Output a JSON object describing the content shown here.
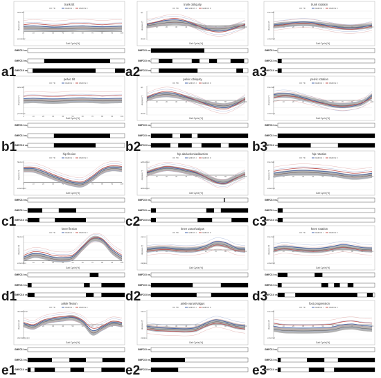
{
  "legend": [
    "TD",
    "GMFCS I",
    "GMFCS II"
  ],
  "series_colors": {
    "td_band": "#9a9a9a",
    "gmfcs1": "#3f5fa8",
    "gmfcs2": "#c0504d",
    "sd": "#a9a9a9",
    "bar": "#000000"
  },
  "x_axis": {
    "label": "Gait Cycle [%]",
    "ticks": [
      "0",
      "10",
      "20",
      "30",
      "40",
      "50",
      "60",
      "70",
      "80",
      "90",
      "100"
    ]
  },
  "y_axis_label": "degrees [°]",
  "row_labels": {
    "r1": "GMFCS I vs. II",
    "r2": "GMFCS I vs. TD",
    "r3": "GMFCS II vs. TD"
  },
  "chart_data": [
    {
      "id": "a1",
      "type": "line",
      "title": "trunk tilt",
      "upper": "anterior",
      "lower": "posterior",
      "ylim": [
        -5,
        12
      ],
      "td": [
        2,
        2,
        1.8,
        1.6,
        1.6,
        1.8,
        2,
        1.8,
        1.6,
        1.8,
        2
      ],
      "g1": [
        3,
        3.4,
        3,
        2.6,
        2.8,
        3.2,
        3.4,
        3,
        2.8,
        3,
        3.2
      ],
      "g2": [
        4,
        4.6,
        4.2,
        3.8,
        4,
        4.6,
        4.8,
        4.4,
        4,
        4.4,
        4.6
      ],
      "bars": {
        "r1": [],
        "r2": [
          [
            17,
            85
          ]
        ],
        "r3": [
          [
            5,
            70
          ],
          [
            90,
            100
          ]
        ]
      }
    },
    {
      "id": "a2",
      "type": "line",
      "title": "trunk obliquity",
      "upper": "up",
      "lower": "down",
      "ylim": [
        -6,
        6
      ],
      "td": [
        0,
        0.6,
        1.2,
        1.4,
        1,
        0,
        -1,
        -1.4,
        -1.2,
        -0.4,
        0
      ],
      "g1": [
        0.4,
        1.4,
        2.2,
        2.4,
        1.6,
        0.2,
        -1.2,
        -2.2,
        -2,
        -0.8,
        0.4
      ],
      "g2": [
        0.6,
        1.6,
        2.6,
        3,
        2,
        0.4,
        -1.6,
        -2.6,
        -2.4,
        -1,
        0.6
      ],
      "bars": {
        "r1": [
          [
            0,
            55
          ]
        ],
        "r2": [
          [
            8,
            22
          ],
          [
            42,
            50
          ],
          [
            60,
            68
          ],
          [
            82,
            96
          ]
        ],
        "r3": [
          [
            8,
            48
          ],
          [
            88,
            95
          ]
        ]
      }
    },
    {
      "id": "a3",
      "type": "line",
      "title": "trunk rotation",
      "upper": "internal",
      "lower": "external",
      "ylim": [
        -8,
        8
      ],
      "td": [
        0,
        0.6,
        1,
        1.2,
        1,
        0.4,
        -0.2,
        -0.8,
        -1,
        -0.6,
        0
      ],
      "g1": [
        0.4,
        1,
        1.6,
        2,
        1.6,
        0.6,
        -0.4,
        -1.2,
        -1.4,
        -0.8,
        0.4
      ],
      "g2": [
        -0.4,
        0.4,
        1,
        1.4,
        1,
        0,
        -1,
        -1.8,
        -2,
        -1.4,
        -0.4
      ],
      "bars": {
        "r1": [],
        "r2": [
          [
            0,
            4
          ]
        ],
        "r3": [
          [
            0,
            4
          ]
        ]
      }
    },
    {
      "id": "b1",
      "type": "line",
      "title": "pelvic tilt",
      "upper": "anterior",
      "lower": "posterior",
      "ylim": [
        0,
        25
      ],
      "td": [
        12,
        12.4,
        12,
        11.8,
        12,
        12.4,
        12.6,
        12.4,
        12,
        12.2,
        12.4
      ],
      "g1": [
        14,
        14.4,
        14,
        13.8,
        14,
        14.6,
        14.8,
        14.4,
        14,
        14.2,
        14.4
      ],
      "g2": [
        16,
        16.6,
        16.2,
        16,
        16.2,
        16.8,
        17,
        16.6,
        16.2,
        16.4,
        16.6
      ],
      "bars": {
        "r1": [],
        "r2": [
          [
            27,
            85
          ]
        ],
        "r3": [
          [
            27,
            70
          ]
        ]
      }
    },
    {
      "id": "b2",
      "type": "line",
      "title": "pelvic obliquity",
      "upper": "up",
      "lower": "down",
      "ylim": [
        -8,
        8
      ],
      "td": [
        1,
        2.6,
        3.2,
        2.6,
        1.4,
        0,
        -1.4,
        -2.6,
        -3,
        -1.6,
        0.6
      ],
      "g1": [
        1.4,
        3.4,
        4.2,
        3.4,
        1.8,
        0,
        -1.8,
        -3.4,
        -4,
        -2.2,
        0.8
      ],
      "g2": [
        1.8,
        4,
        5,
        4.2,
        2.2,
        0.2,
        -2.2,
        -4.2,
        -4.8,
        -2.6,
        1
      ],
      "bars": {
        "r1": [],
        "r2": [
          [
            0,
            22
          ],
          [
            30,
            42
          ],
          [
            48,
            100
          ]
        ],
        "r3": [
          [
            0,
            20
          ],
          [
            28,
            42
          ],
          [
            52,
            72
          ],
          [
            80,
            100
          ]
        ]
      }
    },
    {
      "id": "b3",
      "type": "line",
      "title": "pelvic rotation",
      "upper": "internal",
      "lower": "external",
      "ylim": [
        -10,
        10
      ],
      "td": [
        3,
        3.6,
        3,
        1.6,
        0,
        -1.6,
        -3,
        -3.6,
        -3,
        -1.6,
        2.8
      ],
      "g1": [
        4,
        4.8,
        4,
        2,
        0,
        -2,
        -4,
        -4.8,
        -4,
        -2,
        3.8
      ],
      "g2": [
        2,
        3,
        2.6,
        1,
        -0.6,
        -2.2,
        -3.4,
        -4,
        -3.4,
        -1.6,
        1.8
      ],
      "bars": {
        "r1": [],
        "r2": [
          [
            0,
            100
          ]
        ],
        "r3": [
          [
            0,
            34
          ],
          [
            62,
            100
          ]
        ]
      }
    },
    {
      "id": "c1",
      "type": "line",
      "title": "hip flexion",
      "upper": "flexion",
      "lower": "extension",
      "ylim": [
        -20,
        60
      ],
      "td": [
        35,
        34,
        25,
        14,
        4,
        -4,
        -6,
        10,
        30,
        38,
        36
      ],
      "g1": [
        38,
        38,
        30,
        18,
        8,
        0,
        -2,
        14,
        34,
        42,
        40
      ],
      "g2": [
        42,
        42,
        34,
        22,
        12,
        4,
        2,
        18,
        38,
        46,
        44
      ],
      "bars": {
        "r1": [],
        "r2": [
          [
            0,
            15
          ],
          [
            32,
            50
          ]
        ],
        "r3": [
          [
            0,
            12
          ],
          [
            28,
            60
          ]
        ]
      }
    },
    {
      "id": "c2",
      "type": "line",
      "title": "hip abduction/adduction",
      "upper": "adduction",
      "lower": "abduction",
      "ylim": [
        -15,
        15
      ],
      "td": [
        2,
        5,
        7,
        6,
        4,
        2,
        -2,
        -6,
        -7,
        -3,
        1
      ],
      "g1": [
        2.4,
        5.8,
        8,
        7,
        5,
        2.4,
        -2.2,
        -7,
        -8,
        -3.4,
        1.2
      ],
      "g2": [
        3,
        6.8,
        9,
        8,
        6,
        3,
        -2,
        -7.6,
        -8.6,
        -3.6,
        1.4
      ],
      "bars": {
        "r1": [
          [
            75,
            76
          ]
        ],
        "r2": [
          [
            0,
            5
          ],
          [
            57,
            65
          ],
          [
            72,
            100
          ]
        ],
        "r3": [
          [
            0,
            5
          ],
          [
            48,
            63
          ],
          [
            83,
            100
          ]
        ]
      }
    },
    {
      "id": "c3",
      "type": "line",
      "title": "hip rotation",
      "upper": "internal",
      "lower": "external",
      "ylim": [
        -15,
        15
      ],
      "td": [
        0,
        1.6,
        2.6,
        3,
        2.6,
        2,
        1,
        -0.6,
        -2,
        -1.6,
        0
      ],
      "g1": [
        2,
        3.4,
        4.6,
        5,
        4.6,
        4,
        3,
        1.4,
        0,
        0.4,
        2
      ],
      "g2": [
        4,
        5.6,
        6.8,
        7.4,
        7,
        6.2,
        5,
        3.4,
        2,
        2.4,
        4
      ],
      "bars": {
        "r1": [],
        "r2": [
          [
            0,
            5
          ]
        ],
        "r3": [
          [
            0,
            5
          ]
        ]
      }
    },
    {
      "id": "d1",
      "type": "line",
      "title": "knee flexion",
      "upper": "flexion",
      "lower": "extension",
      "ylim": [
        -10,
        70
      ],
      "td": [
        5,
        15,
        12,
        5,
        3,
        8,
        35,
        60,
        55,
        25,
        6
      ],
      "g1": [
        10,
        20,
        18,
        10,
        8,
        12,
        38,
        62,
        58,
        30,
        12
      ],
      "g2": [
        15,
        25,
        23,
        15,
        13,
        16,
        40,
        62,
        60,
        34,
        16
      ],
      "bars": {
        "r1": [
          [
            64,
            73
          ]
        ],
        "r2": [
          [
            0,
            4
          ],
          [
            58,
            64
          ],
          [
            76,
            100
          ]
        ],
        "r3": [
          [
            0,
            7
          ],
          [
            60,
            68
          ],
          [
            76,
            100
          ]
        ]
      }
    },
    {
      "id": "d2",
      "type": "line",
      "title": "knee varus/valgus",
      "upper": "varus",
      "lower": "valgus",
      "ylim": [
        -12,
        12
      ],
      "td": [
        0,
        1,
        1,
        0.4,
        0,
        0.4,
        2,
        5,
        4,
        1,
        0
      ],
      "g1": [
        0.6,
        1.6,
        1.8,
        1,
        0.6,
        1.2,
        3.4,
        7,
        6,
        2,
        0.6
      ],
      "g2": [
        -1,
        0,
        0.4,
        -0.4,
        -1,
        -0.6,
        1,
        4,
        3,
        -0.4,
        -1
      ],
      "bars": {
        "r1": [],
        "r2": [
          [
            0,
            43
          ],
          [
            72,
            100
          ]
        ],
        "r3": [
          [
            0,
            47
          ],
          [
            62,
            100
          ]
        ]
      }
    },
    {
      "id": "d3",
      "type": "line",
      "title": "knee rotation",
      "upper": "internal",
      "lower": "external",
      "ylim": [
        -15,
        15
      ],
      "td": [
        0,
        2,
        1,
        0,
        -0.6,
        0,
        1.6,
        3,
        2,
        0.6,
        0
      ],
      "g1": [
        2,
        4,
        3,
        2,
        1.4,
        2,
        3.6,
        5.6,
        4.4,
        2.4,
        2
      ],
      "g2": [
        -1,
        1,
        0,
        -1,
        -1.6,
        -1,
        0.6,
        2.4,
        1.4,
        -0.4,
        -1
      ],
      "bars": {
        "r1": [
          [
            0,
            10
          ],
          [
            38,
            46
          ]
        ],
        "r2": [
          [
            0,
            4
          ],
          [
            45,
            52
          ],
          [
            58,
            64
          ],
          [
            72,
            78
          ]
        ],
        "r3": [
          [
            0,
            7
          ],
          [
            18,
            82
          ],
          [
            92,
            98
          ]
        ]
      }
    },
    {
      "id": "e1",
      "type": "line",
      "title": "ankle flexion",
      "upper": "dorsiflexion",
      "lower": "plantarflexion",
      "ylim": [
        -25,
        25
      ],
      "td": [
        0,
        -4,
        4,
        8,
        10,
        12,
        4,
        -14,
        -6,
        2,
        0
      ],
      "g1": [
        2,
        -2,
        6,
        10,
        12,
        13,
        6,
        -10,
        -4,
        4,
        2
      ],
      "g2": [
        4,
        0,
        8,
        12,
        14,
        14,
        8,
        -6,
        -2,
        6,
        4
      ],
      "bars": {
        "r1": [],
        "r2": [
          [
            0,
            25
          ],
          [
            43,
            60
          ],
          [
            77,
            100
          ]
        ],
        "r3": [
          [
            0,
            3
          ],
          [
            7,
            28
          ],
          [
            44,
            58
          ],
          [
            76,
            100
          ]
        ]
      }
    },
    {
      "id": "e2",
      "type": "line",
      "title": "ankle varus/valgus",
      "upper": "varus",
      "lower": "valgus",
      "ylim": [
        -10,
        10
      ],
      "td": [
        -2,
        -3,
        -3,
        -3.4,
        -3.6,
        -3,
        0,
        2,
        1,
        -1,
        -2
      ],
      "g1": [
        -1,
        -2,
        -2.4,
        -2.6,
        -2.8,
        -2,
        1,
        3.4,
        2,
        0,
        -1
      ],
      "g2": [
        -3,
        -4,
        -4.4,
        -4.6,
        -4.8,
        -4,
        -1,
        1,
        0,
        -2,
        -3
      ],
      "bars": {
        "r1": [],
        "r2": [
          [
            0,
            35
          ]
        ],
        "r3": [
          [
            0,
            28
          ]
        ]
      }
    },
    {
      "id": "e3",
      "type": "line",
      "title": "foot progression",
      "upper": "internal",
      "lower": "external",
      "ylim": [
        -20,
        20
      ],
      "td": [
        -6,
        -8,
        -8.4,
        -8.6,
        -8.4,
        -8,
        -7,
        -4,
        -3,
        -5,
        -6
      ],
      "g1": [
        -2,
        -4,
        -4.4,
        -4.6,
        -4.4,
        -4,
        -3,
        0,
        1,
        -1,
        -2
      ],
      "g2": [
        2,
        0,
        -0.4,
        -0.6,
        -0.4,
        0,
        1,
        4,
        5,
        3,
        2
      ],
      "bars": {
        "r1": [],
        "r2": [
          [
            0,
            3
          ],
          [
            30,
            48
          ],
          [
            62,
            100
          ]
        ],
        "r3": [
          [
            0,
            3
          ],
          [
            32,
            48
          ],
          [
            58,
            100
          ]
        ]
      }
    }
  ]
}
